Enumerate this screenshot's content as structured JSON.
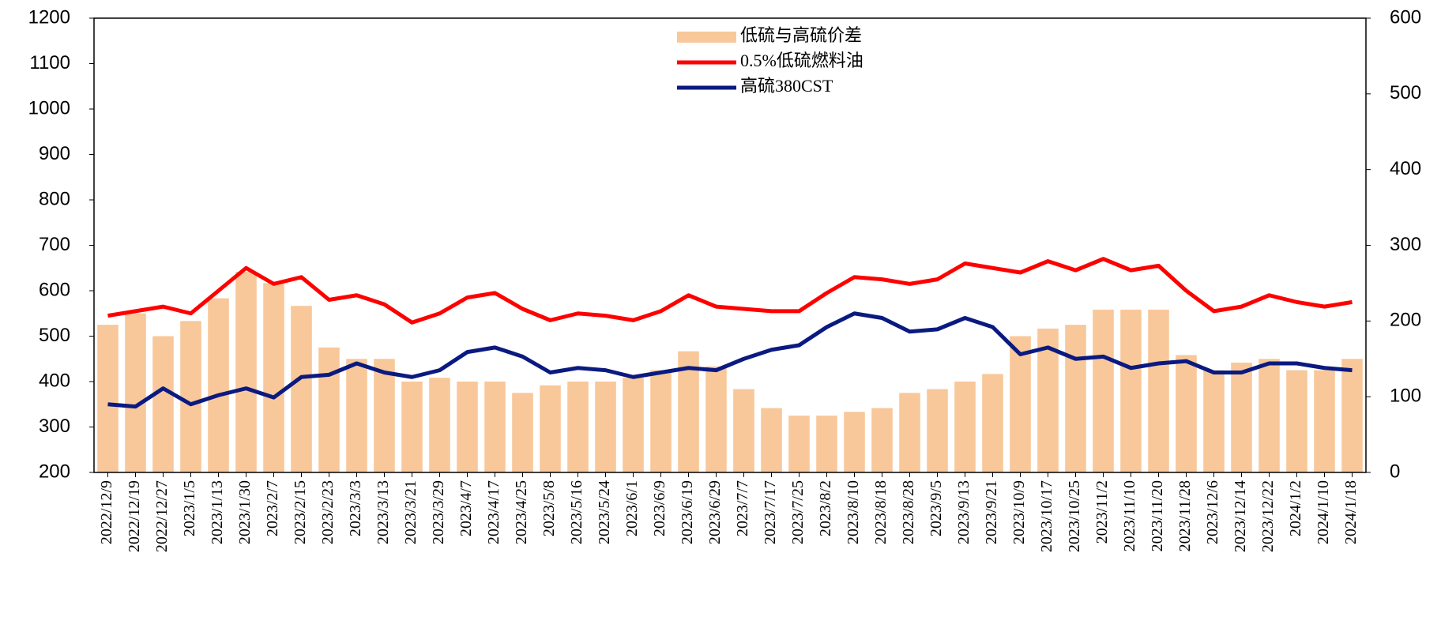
{
  "chart_data": {
    "type": "bar-line",
    "categories": [
      "2022/12/9",
      "2022/12/19",
      "2022/12/27",
      "2023/1/5",
      "2023/1/13",
      "2023/1/30",
      "2023/2/7",
      "2023/2/15",
      "2023/2/23",
      "2023/3/3",
      "2023/3/13",
      "2023/3/21",
      "2023/3/29",
      "2023/4/7",
      "2023/4/17",
      "2023/4/25",
      "2023/5/8",
      "2023/5/16",
      "2023/5/24",
      "2023/6/1",
      "2023/6/9",
      "2023/6/19",
      "2023/6/29",
      "2023/7/7",
      "2023/7/17",
      "2023/7/25",
      "2023/8/2",
      "2023/8/10",
      "2023/8/18",
      "2023/8/28",
      "2023/9/5",
      "2023/9/13",
      "2023/9/21",
      "2023/10/9",
      "2023/10/17",
      "2023/10/25",
      "2023/11/2",
      "2023/11/10",
      "2023/11/20",
      "2023/11/28",
      "2023/12/6",
      "2023/12/14",
      "2023/12/22",
      "2024/1/2",
      "2024/1/10",
      "2024/1/18"
    ],
    "series": [
      {
        "name": "低硫与高硫价差",
        "kind": "bar",
        "axis": "y2",
        "color": "#f8c89a",
        "values": [
          195,
          210,
          180,
          200,
          230,
          265,
          250,
          220,
          165,
          150,
          150,
          120,
          125,
          120,
          120,
          105,
          115,
          120,
          120,
          125,
          135,
          160,
          140,
          110,
          85,
          75,
          75,
          80,
          85,
          105,
          110,
          120,
          130,
          180,
          190,
          195,
          215,
          215,
          215,
          155,
          135,
          145,
          150,
          135,
          135,
          150
        ]
      },
      {
        "name": "0.5%低硫燃料油",
        "kind": "line",
        "color": "#ff0000",
        "values": [
          545,
          555,
          565,
          550,
          600,
          650,
          615,
          630,
          580,
          590,
          570,
          530,
          550,
          585,
          595,
          560,
          535,
          550,
          545,
          535,
          555,
          590,
          565,
          560,
          555,
          555,
          595,
          630,
          625,
          615,
          625,
          660,
          650,
          640,
          665,
          645,
          670,
          645,
          655,
          600,
          555,
          565,
          590,
          575,
          565,
          575
        ]
      },
      {
        "name": "高硫380CST",
        "kind": "line",
        "color": "#0a1a80",
        "values": [
          350,
          345,
          385,
          350,
          370,
          385,
          365,
          410,
          415,
          440,
          420,
          410,
          425,
          465,
          475,
          455,
          420,
          430,
          425,
          410,
          420,
          430,
          425,
          450,
          470,
          480,
          520,
          550,
          540,
          510,
          515,
          540,
          520,
          460,
          475,
          450,
          455,
          430,
          440,
          445,
          420,
          420,
          440,
          440,
          430,
          425
        ]
      }
    ],
    "ylim": [
      200,
      1200
    ],
    "yticks": [
      200,
      300,
      400,
      500,
      600,
      700,
      800,
      900,
      1000,
      1100,
      1200
    ],
    "y2lim": [
      0,
      600
    ],
    "y2ticks": [
      0,
      100,
      200,
      300,
      400,
      500,
      600
    ]
  }
}
